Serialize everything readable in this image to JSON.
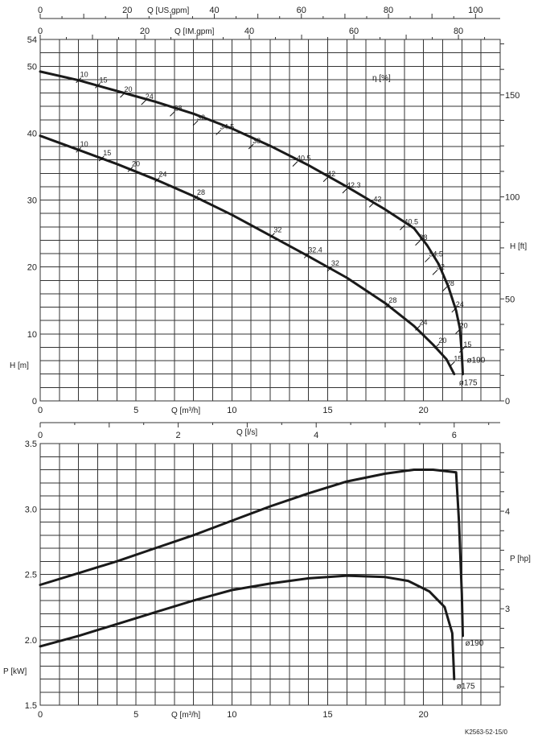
{
  "chart_data": {
    "type": "line",
    "code": "K2563-52-15/0",
    "q_axis_labels": {
      "us_gpm": "Q [US.gpm]",
      "im_gpm": "Q [IM.gpm]",
      "m3h": "Q [m³/h]",
      "ls": "Q [l/s]"
    },
    "ticks": {
      "us_gpm": [
        0,
        20,
        40,
        60,
        80,
        100
      ],
      "im_gpm": [
        0,
        20,
        40,
        60,
        80
      ],
      "m3h": [
        0,
        5,
        10,
        15,
        20
      ],
      "ls": [
        0,
        2,
        4,
        6
      ],
      "head_m": [
        0,
        10,
        20,
        30,
        40,
        50,
        54
      ],
      "head_ft": [
        0,
        50,
        100,
        150
      ],
      "power_kw": [
        1.5,
        2.0,
        2.5,
        3.0,
        3.5
      ],
      "power_hp": [
        3,
        4
      ]
    },
    "head_chart": {
      "ylabel": "H [m]",
      "y2label": "H [ft]",
      "eta_label": "η [%]",
      "xlim": [
        0,
        24
      ],
      "ylim": [
        0,
        54
      ],
      "series": [
        {
          "name": "ø190",
          "points": [
            [
              0,
              49.2
            ],
            [
              2,
              47.9
            ],
            [
              4,
              46.3
            ],
            [
              6,
              44.7
            ],
            [
              8,
              42.9
            ],
            [
              10,
              40.7
            ],
            [
              12,
              38.1
            ],
            [
              14,
              35.2
            ],
            [
              16,
              32.0
            ],
            [
              18,
              28.6
            ],
            [
              19.5,
              25.8
            ],
            [
              20.2,
              23.2
            ],
            [
              20.8,
              20.4
            ],
            [
              21.3,
              17.0
            ],
            [
              21.7,
              13.5
            ],
            [
              21.9,
              10.8
            ],
            [
              22.0,
              7.0
            ],
            [
              22.05,
              4.0
            ]
          ],
          "efficiency": [
            {
              "q": 2.0,
              "h": 47.9,
              "eta": "10"
            },
            {
              "q": 3.0,
              "h": 47.1,
              "eta": "15"
            },
            {
              "q": 4.3,
              "h": 45.7,
              "eta": "20"
            },
            {
              "q": 5.4,
              "h": 44.6,
              "eta": "24"
            },
            {
              "q": 6.9,
              "h": 42.9,
              "eta": "28"
            },
            {
              "q": 8.1,
              "h": 41.5,
              "eta": "32"
            },
            {
              "q": 9.3,
              "h": 40.1,
              "eta": "34.5"
            },
            {
              "q": 11.0,
              "h": 38.0,
              "eta": "38"
            },
            {
              "q": 13.3,
              "h": 35.4,
              "eta": "40.5"
            },
            {
              "q": 14.9,
              "h": 33.1,
              "eta": "42"
            },
            {
              "q": 15.9,
              "h": 31.4,
              "eta": "42.3"
            },
            {
              "q": 17.3,
              "h": 29.3,
              "eta": "42"
            },
            {
              "q": 18.9,
              "h": 25.9,
              "eta": "40.5"
            },
            {
              "q": 19.7,
              "h": 23.6,
              "eta": "38"
            },
            {
              "q": 20.2,
              "h": 21.1,
              "eta": "34.5"
            },
            {
              "q": 20.6,
              "h": 19.2,
              "eta": "32"
            },
            {
              "q": 21.1,
              "h": 16.7,
              "eta": "28"
            },
            {
              "q": 21.6,
              "h": 13.6,
              "eta": "24"
            },
            {
              "q": 21.8,
              "h": 10.4,
              "eta": "20"
            },
            {
              "q": 22.0,
              "h": 7.6,
              "eta": "15"
            }
          ]
        },
        {
          "name": "ø175",
          "points": [
            [
              0,
              39.6
            ],
            [
              2,
              37.5
            ],
            [
              4,
              35.4
            ],
            [
              6,
              33.1
            ],
            [
              8,
              30.6
            ],
            [
              10,
              27.8
            ],
            [
              12,
              24.7
            ],
            [
              14,
              21.6
            ],
            [
              16,
              18.4
            ],
            [
              18,
              14.6
            ],
            [
              19.5,
              11.2
            ],
            [
              20.5,
              8.4
            ],
            [
              21.2,
              6.2
            ],
            [
              21.6,
              4.0
            ]
          ],
          "efficiency": [
            {
              "q": 2.0,
              "h": 37.5,
              "eta": "10"
            },
            {
              "q": 3.2,
              "h": 36.2,
              "eta": "15"
            },
            {
              "q": 4.7,
              "h": 34.6,
              "eta": "20"
            },
            {
              "q": 6.1,
              "h": 33.0,
              "eta": "24"
            },
            {
              "q": 8.1,
              "h": 30.3,
              "eta": "28"
            },
            {
              "q": 12.1,
              "h": 24.7,
              "eta": "32"
            },
            {
              "q": 13.9,
              "h": 21.7,
              "eta": "32.4"
            },
            {
              "q": 15.1,
              "h": 19.7,
              "eta": "32"
            },
            {
              "q": 18.1,
              "h": 14.2,
              "eta": "28"
            },
            {
              "q": 19.7,
              "h": 10.9,
              "eta": "24"
            },
            {
              "q": 20.7,
              "h": 8.2,
              "eta": "20"
            },
            {
              "q": 21.5,
              "h": 5.5,
              "eta": "15"
            }
          ]
        }
      ]
    },
    "power_chart": {
      "ylabel": "P [kW]",
      "y2label": "P [hp]",
      "xlim": [
        0,
        24
      ],
      "ylim": [
        1.5,
        3.5
      ],
      "series": [
        {
          "name": "ø190",
          "points": [
            [
              0,
              2.42
            ],
            [
              2,
              2.51
            ],
            [
              4,
              2.6
            ],
            [
              6,
              2.7
            ],
            [
              8,
              2.8
            ],
            [
              10,
              2.91
            ],
            [
              12,
              3.02
            ],
            [
              14,
              3.12
            ],
            [
              16,
              3.21
            ],
            [
              18,
              3.27
            ],
            [
              19.5,
              3.3
            ],
            [
              20.5,
              3.3
            ],
            [
              21.7,
              3.28
            ],
            [
              21.85,
              2.9
            ],
            [
              22.0,
              2.35
            ],
            [
              22.05,
              2.03
            ]
          ]
        },
        {
          "name": "ø175",
          "points": [
            [
              0,
              1.95
            ],
            [
              2,
              2.03
            ],
            [
              4,
              2.12
            ],
            [
              6,
              2.21
            ],
            [
              8,
              2.3
            ],
            [
              10,
              2.38
            ],
            [
              12,
              2.43
            ],
            [
              14,
              2.47
            ],
            [
              16,
              2.49
            ],
            [
              18,
              2.48
            ],
            [
              19.2,
              2.45
            ],
            [
              20.3,
              2.37
            ],
            [
              21.1,
              2.25
            ],
            [
              21.5,
              2.05
            ],
            [
              21.6,
              1.7
            ]
          ]
        }
      ]
    }
  }
}
